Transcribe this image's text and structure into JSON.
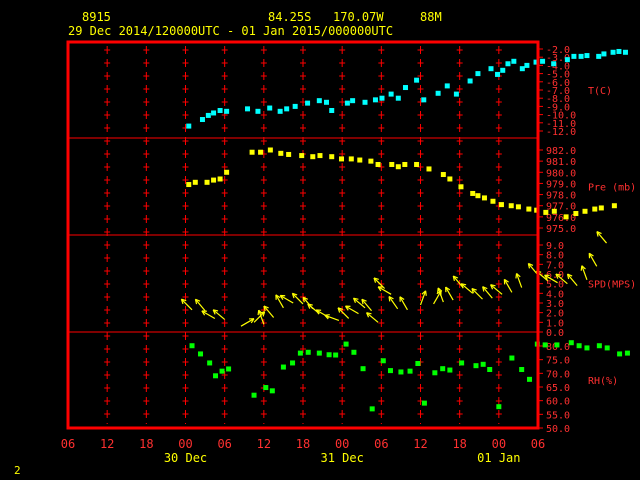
{
  "header": {
    "station_id": "8915",
    "position": "84.25S   170.07W",
    "elevation": "88M",
    "period": "29 Dec 2014/120000UTC - 01 Jan 2015/000000UTC"
  },
  "footer": {
    "page_number": "2"
  },
  "colors": {
    "background": "#000000",
    "frame": "#ff0000",
    "grid": "#ff0000",
    "header_text": "#ffff00",
    "axis_text": "#ff3030",
    "temperature": "#00ffff",
    "pressure": "#ffff00",
    "wind": "#ffff00",
    "humidity": "#00ff00"
  },
  "chart_data": {
    "type": "scatter",
    "x_axis": {
      "unit": "hours",
      "range_hours": [
        -6,
        66
      ],
      "tick_labels": [
        "06",
        "12",
        "18",
        "00",
        "06",
        "12",
        "18",
        "00",
        "06",
        "12",
        "18",
        "00",
        "06"
      ],
      "date_labels": [
        {
          "label": "30 Dec",
          "hour": 12
        },
        {
          "label": "31 Dec",
          "hour": 36
        },
        {
          "label": "01 Jan",
          "hour": 60
        }
      ]
    },
    "panels": [
      {
        "key": "temperature",
        "label": "T(C)",
        "ylim": [
          -12,
          -2
        ],
        "tick_labels": [
          "-2.0",
          "-3.0",
          "-4.0",
          "-5.0",
          "-6.0",
          "-7.0",
          "-8.0",
          "-9.0",
          "-10.0",
          "-11.0",
          "-12.0"
        ],
        "series": [
          {
            "points": [
              [
                12.5,
                -11.4
              ],
              [
                14.6,
                -10.6
              ],
              [
                15.5,
                -10.1
              ],
              [
                16.3,
                -9.8
              ],
              [
                17.3,
                -9.5
              ],
              [
                18.3,
                -9.6
              ],
              [
                21.5,
                -9.3
              ],
              [
                23.1,
                -9.6
              ],
              [
                24.9,
                -9.2
              ],
              [
                26.5,
                -9.6
              ],
              [
                27.5,
                -9.3
              ],
              [
                28.8,
                -9.0
              ],
              [
                30.7,
                -8.6
              ],
              [
                32.5,
                -8.3
              ],
              [
                33.6,
                -8.5
              ],
              [
                34.4,
                -9.5
              ],
              [
                36.8,
                -8.6
              ],
              [
                37.6,
                -8.3
              ],
              [
                39.5,
                -8.5
              ],
              [
                41.1,
                -8.2
              ],
              [
                42.1,
                -8.0
              ],
              [
                43.5,
                -7.5
              ],
              [
                44.6,
                -8.0
              ],
              [
                45.7,
                -6.7
              ],
              [
                47.4,
                -5.8
              ],
              [
                48.5,
                -8.2
              ],
              [
                50.7,
                -7.4
              ],
              [
                52.1,
                -6.5
              ],
              [
                53.5,
                -7.5
              ],
              [
                55.6,
                -5.9
              ],
              [
                56.8,
                -5.0
              ],
              [
                58.8,
                -4.4
              ],
              [
                59.8,
                -5.1
              ],
              [
                60.6,
                -4.6
              ],
              [
                61.4,
                -3.8
              ],
              [
                62.3,
                -3.5
              ],
              [
                63.6,
                -4.4
              ],
              [
                64.3,
                -4.0
              ],
              [
                65.7,
                -3.6
              ],
              [
                66.7,
                -3.5
              ],
              [
                68.4,
                -3.8
              ],
              [
                70.5,
                -3.3
              ],
              [
                71.5,
                -2.9
              ],
              [
                72.6,
                -2.9
              ],
              [
                73.5,
                -2.8
              ],
              [
                75.3,
                -2.9
              ],
              [
                76.1,
                -2.6
              ],
              [
                77.5,
                -2.4
              ],
              [
                78.4,
                -2.3
              ],
              [
                79.4,
                -2.4
              ]
            ]
          }
        ]
      },
      {
        "key": "pressure",
        "label": "Pre (mb)",
        "ylim": [
          975,
          982
        ],
        "tick_labels": [
          "982.0",
          "981.0",
          "980.0",
          "979.0",
          "978.0",
          "977.0",
          "976.0",
          "975.0"
        ],
        "series": [
          {
            "points": [
              [
                12.5,
                978.9
              ],
              [
                13.5,
                979.1
              ],
              [
                15.3,
                979.1
              ],
              [
                16.3,
                979.3
              ],
              [
                17.3,
                979.4
              ],
              [
                18.3,
                980.0
              ],
              [
                22.2,
                981.8
              ],
              [
                23.5,
                981.8
              ],
              [
                25.0,
                982.0
              ],
              [
                26.6,
                981.7
              ],
              [
                27.8,
                981.6
              ],
              [
                29.8,
                981.5
              ],
              [
                31.5,
                981.4
              ],
              [
                32.6,
                981.5
              ],
              [
                34.4,
                981.4
              ],
              [
                35.9,
                981.2
              ],
              [
                37.4,
                981.2
              ],
              [
                38.7,
                981.1
              ],
              [
                40.4,
                981.0
              ],
              [
                41.5,
                980.7
              ],
              [
                43.6,
                980.7
              ],
              [
                44.6,
                980.5
              ],
              [
                45.6,
                980.7
              ],
              [
                47.4,
                980.7
              ],
              [
                49.3,
                980.3
              ],
              [
                51.5,
                979.8
              ],
              [
                52.5,
                979.4
              ],
              [
                54.2,
                978.7
              ],
              [
                56.0,
                978.1
              ],
              [
                56.8,
                977.9
              ],
              [
                57.8,
                977.7
              ],
              [
                59.1,
                977.4
              ],
              [
                60.4,
                977.1
              ],
              [
                61.9,
                977.0
              ],
              [
                63.0,
                976.9
              ],
              [
                64.6,
                976.7
              ],
              [
                65.8,
                976.6
              ],
              [
                67.2,
                976.4
              ],
              [
                68.5,
                976.5
              ],
              [
                70.3,
                976.0
              ],
              [
                71.8,
                976.3
              ],
              [
                73.2,
                976.5
              ],
              [
                74.7,
                976.7
              ],
              [
                75.7,
                976.8
              ],
              [
                77.7,
                977.0
              ]
            ]
          }
        ]
      },
      {
        "key": "wind",
        "label": "SPD(MPS)",
        "ylim": [
          0,
          9
        ],
        "tick_labels": [
          "9.0",
          "8.0",
          "7.0",
          "6.0",
          "5.0",
          "4.0",
          "3.0",
          "2.0",
          "1.0",
          "0.0"
        ],
        "series": [
          {
            "points_speed_dir": [
              [
                13.0,
                2.3,
                315
              ],
              [
                15.0,
                2.2,
                320
              ],
              [
                16.5,
                1.4,
                300
              ],
              [
                18.0,
                1.3,
                310
              ],
              [
                20.5,
                0.6,
                60
              ],
              [
                22.5,
                1.0,
                45
              ],
              [
                24.0,
                0.8,
                340
              ],
              [
                25.5,
                1.5,
                320
              ],
              [
                27.0,
                2.5,
                330
              ],
              [
                28.5,
                3.0,
                300
              ],
              [
                30.0,
                2.9,
                315
              ],
              [
                31.5,
                2.4,
                320
              ],
              [
                32.5,
                1.9,
                310
              ],
              [
                34.0,
                1.5,
                300
              ],
              [
                35.5,
                1.2,
                290
              ],
              [
                37.0,
                1.4,
                315
              ],
              [
                38.5,
                1.9,
                300
              ],
              [
                39.5,
                2.5,
                310
              ],
              [
                40.5,
                2.2,
                320
              ],
              [
                41.5,
                1.0,
                310
              ],
              [
                42.5,
                4.5,
                315
              ],
              [
                43.5,
                3.9,
                300
              ],
              [
                44.5,
                2.4,
                325
              ],
              [
                46.0,
                2.3,
                330
              ],
              [
                48.0,
                2.8,
                20
              ],
              [
                50.0,
                2.9,
                30
              ],
              [
                51.5,
                3.1,
                340
              ],
              [
                53.0,
                3.3,
                330
              ],
              [
                54.5,
                4.6,
                320
              ],
              [
                56.0,
                4.0,
                310
              ],
              [
                57.5,
                3.4,
                315
              ],
              [
                59.0,
                3.5,
                320
              ],
              [
                60.5,
                3.9,
                310
              ],
              [
                62.0,
                4.1,
                330
              ],
              [
                63.5,
                4.6,
                340
              ],
              [
                66.0,
                5.9,
                320
              ],
              [
                67.5,
                5.3,
                310
              ],
              [
                69.0,
                5.1,
                300
              ],
              [
                70.5,
                5.0,
                310
              ],
              [
                72.0,
                4.8,
                320
              ],
              [
                73.5,
                5.4,
                340
              ],
              [
                75.0,
                6.8,
                330
              ],
              [
                76.5,
                9.2,
                320
              ]
            ]
          }
        ]
      },
      {
        "key": "humidity",
        "label": "RH(%)",
        "ylim": [
          50,
          80
        ],
        "tick_labels": [
          "80.0",
          "75.0",
          "70.0",
          "65.0",
          "60.0",
          "55.0",
          "50.0"
        ],
        "series": [
          {
            "points": [
              [
                13.0,
                80.1
              ],
              [
                14.3,
                77.1
              ],
              [
                15.7,
                73.8
              ],
              [
                16.6,
                69.1
              ],
              [
                17.6,
                70.8
              ],
              [
                18.6,
                71.6
              ],
              [
                22.5,
                62.0
              ],
              [
                24.3,
                64.8
              ],
              [
                25.3,
                63.6
              ],
              [
                27.0,
                72.3
              ],
              [
                28.4,
                73.8
              ],
              [
                29.6,
                77.4
              ],
              [
                30.8,
                77.7
              ],
              [
                32.5,
                77.4
              ],
              [
                34.0,
                76.8
              ],
              [
                35.0,
                76.7
              ],
              [
                36.6,
                80.7
              ],
              [
                37.8,
                77.7
              ],
              [
                39.2,
                71.7
              ],
              [
                40.6,
                57.0
              ],
              [
                42.3,
                74.6
              ],
              [
                43.4,
                71.0
              ],
              [
                45.0,
                70.5
              ],
              [
                46.4,
                70.8
              ],
              [
                47.6,
                73.6
              ],
              [
                48.6,
                59.1
              ],
              [
                50.2,
                70.2
              ],
              [
                51.4,
                71.7
              ],
              [
                52.5,
                71.2
              ],
              [
                54.3,
                73.8
              ],
              [
                56.5,
                72.8
              ],
              [
                57.6,
                73.3
              ],
              [
                58.6,
                71.4
              ],
              [
                60.0,
                57.8
              ],
              [
                62.0,
                75.6
              ],
              [
                63.5,
                71.4
              ],
              [
                64.7,
                67.8
              ],
              [
                65.9,
                80.7
              ],
              [
                67.1,
                80.4
              ],
              [
                68.9,
                80.4
              ],
              [
                71.1,
                81.2
              ],
              [
                72.3,
                80.1
              ],
              [
                73.5,
                79.3
              ],
              [
                75.4,
                80.1
              ],
              [
                76.6,
                79.3
              ],
              [
                78.5,
                77.1
              ],
              [
                79.7,
                77.4
              ]
            ]
          }
        ]
      }
    ]
  }
}
